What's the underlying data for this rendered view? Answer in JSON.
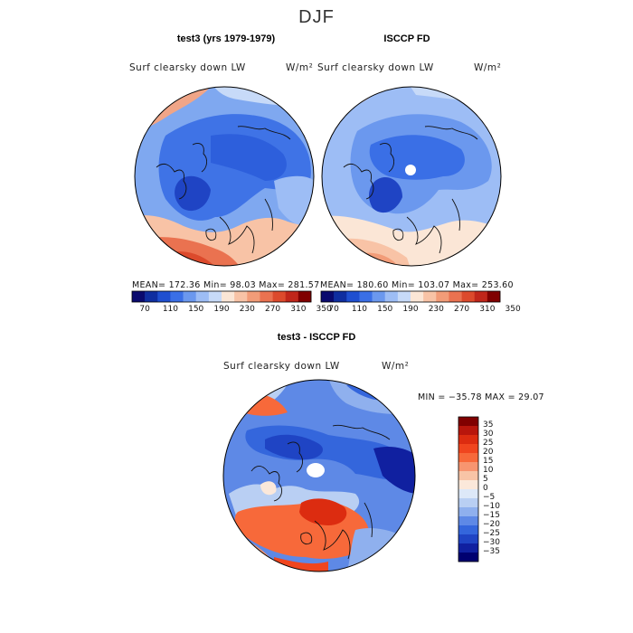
{
  "page": {
    "title": "DJF"
  },
  "panels": [
    {
      "id": "model",
      "title": "test3 (yrs 1979-1979)",
      "variable": "Surf clearsky down LW",
      "units": "W/m²",
      "stats": "MEAN= 172.36   Min=  98.03   Max= 281.57"
    },
    {
      "id": "obs",
      "title": "ISCCP FD",
      "variable": "Surf clearsky down LW",
      "units": "W/m²",
      "stats": "MEAN= 180.60   Min= 103.07   Max= 253.60"
    },
    {
      "id": "diff",
      "title": "test3 - ISCCP FD",
      "variable": "Surf clearsky down LW",
      "units": "W/m²",
      "stats": "MIN = −35.78  MAX =  29.07"
    }
  ],
  "chart_data": [
    {
      "type": "heatmap",
      "projection": "north-polar-stereographic",
      "title": "test3 (yrs 1979-1979)",
      "variable": "Surf clearsky down LW",
      "units": "W/m²",
      "mean": 172.36,
      "min": 98.03,
      "max": 281.57,
      "colorbar": {
        "orientation": "horizontal",
        "tick_labels": [
          "70",
          "110",
          "150",
          "190",
          "230",
          "270",
          "310",
          "350"
        ],
        "colors": [
          "#0a0a6e",
          "#0f2ea0",
          "#1f4fd0",
          "#3a6fe6",
          "#6b98ee",
          "#9dbdf5",
          "#c7daf8",
          "#fbe6d6",
          "#f8c3a6",
          "#f29c78",
          "#ea7250",
          "#dc4a2c",
          "#c0261a",
          "#800000"
        ]
      }
    },
    {
      "type": "heatmap",
      "projection": "north-polar-stereographic",
      "title": "ISCCP FD",
      "variable": "Surf clearsky down LW",
      "units": "W/m²",
      "mean": 180.6,
      "min": 103.07,
      "max": 253.6,
      "colorbar": {
        "orientation": "horizontal",
        "tick_labels": [
          "70",
          "110",
          "150",
          "190",
          "230",
          "270",
          "310",
          "350"
        ],
        "colors": [
          "#0a0a6e",
          "#0f2ea0",
          "#1f4fd0",
          "#3a6fe6",
          "#6b98ee",
          "#9dbdf5",
          "#c7daf8",
          "#fbe6d6",
          "#f8c3a6",
          "#f29c78",
          "#ea7250",
          "#dc4a2c",
          "#c0261a",
          "#800000"
        ]
      }
    },
    {
      "type": "heatmap",
      "projection": "north-polar-stereographic",
      "title": "test3 - ISCCP FD",
      "variable": "Surf clearsky down LW",
      "units": "W/m²",
      "min": -35.78,
      "max": 29.07,
      "colorbar": {
        "orientation": "vertical",
        "tick_labels": [
          "35",
          "30",
          "25",
          "20",
          "15",
          "10",
          "5",
          "0",
          "−5",
          "−10",
          "−15",
          "−20",
          "−25",
          "−30",
          "−35"
        ],
        "colors": [
          "#800000",
          "#b8160c",
          "#dc2c10",
          "#f0451e",
          "#f7693a",
          "#f79570",
          "#f8c4a6",
          "#fbe8da",
          "#dde8f8",
          "#b9cff3",
          "#8fb0ee",
          "#5e89e6",
          "#3466dc",
          "#1f44c4",
          "#1020a0",
          "#000070"
        ]
      }
    }
  ]
}
